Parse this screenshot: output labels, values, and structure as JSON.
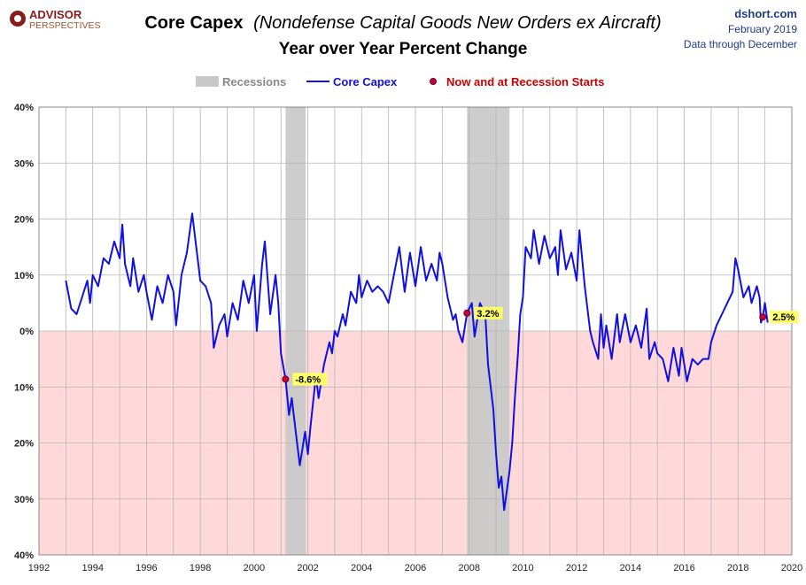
{
  "header": {
    "logo_top": "ADVISOR",
    "logo_bottom": "PERSPECTIVES",
    "title_main": "Core Capex",
    "title_paren": "(Nondefense  Capital Goods New Orders ex Aircraft)",
    "subtitle": "Year over Year Percent Change",
    "site": "dshort.com",
    "date": "February 2019",
    "data_through": "Data through December"
  },
  "legend": {
    "recessions": "Recessions",
    "series": "Core Capex",
    "markers": "Now and at Recession Starts"
  },
  "colors": {
    "line": "#1010e0",
    "recession": "#c8c8c8",
    "negative_fill": "#ffd9d9",
    "marker": "#cc0033",
    "label_bg": "#ffff66",
    "title": "#000000",
    "blue_text": "#1f3a8a",
    "red_text": "#cc0000",
    "logo": "#8b1a1a"
  },
  "chart_data": {
    "type": "line",
    "title": "Core Capex (Nondefense  Capital Goods New Orders ex Aircraft)",
    "subtitle": "Year over Year Percent Change",
    "xlim": [
      1992,
      2020
    ],
    "ylim": [
      -40,
      40
    ],
    "x_ticks": [
      1992,
      1994,
      1996,
      1998,
      2000,
      2002,
      2004,
      2006,
      2008,
      2010,
      2012,
      2014,
      2016,
      2018,
      2020
    ],
    "y_ticks": [
      -40,
      -30,
      -20,
      -10,
      0,
      10,
      20,
      30,
      40
    ],
    "y_tick_labels": [
      "40%",
      "30%",
      "20%",
      "10%",
      "0%",
      "10%",
      "20%",
      "30%",
      "40%"
    ],
    "grid": true,
    "legend_position": "top-center",
    "recessions": [
      [
        2001.17,
        2001.92
      ],
      [
        2007.92,
        2009.5
      ]
    ],
    "annotations": [
      {
        "x": 2001.17,
        "y": -8.6,
        "label": "-8.6%"
      },
      {
        "x": 2007.92,
        "y": 3.2,
        "label": "3.2%"
      },
      {
        "x": 2018.92,
        "y": 2.5,
        "label": "2.5%"
      }
    ],
    "series": [
      {
        "name": "Core Capex",
        "points": [
          [
            1993.0,
            9
          ],
          [
            1993.2,
            4
          ],
          [
            1993.4,
            3
          ],
          [
            1993.6,
            6
          ],
          [
            1993.8,
            9
          ],
          [
            1993.9,
            5
          ],
          [
            1994.0,
            10
          ],
          [
            1994.2,
            8
          ],
          [
            1994.4,
            13
          ],
          [
            1994.6,
            12
          ],
          [
            1994.8,
            16
          ],
          [
            1995.0,
            13
          ],
          [
            1995.1,
            19
          ],
          [
            1995.2,
            12
          ],
          [
            1995.4,
            8
          ],
          [
            1995.5,
            13
          ],
          [
            1995.7,
            7
          ],
          [
            1995.9,
            10
          ],
          [
            1996.0,
            7
          ],
          [
            1996.2,
            2
          ],
          [
            1996.4,
            8
          ],
          [
            1996.6,
            5
          ],
          [
            1996.8,
            10
          ],
          [
            1997.0,
            7
          ],
          [
            1997.1,
            1
          ],
          [
            1997.3,
            10
          ],
          [
            1997.5,
            14
          ],
          [
            1997.7,
            21
          ],
          [
            1997.9,
            13
          ],
          [
            1998.0,
            9
          ],
          [
            1998.2,
            8
          ],
          [
            1998.4,
            5
          ],
          [
            1998.5,
            -3
          ],
          [
            1998.7,
            1
          ],
          [
            1998.9,
            3
          ],
          [
            1999.0,
            -1
          ],
          [
            1999.2,
            5
          ],
          [
            1999.4,
            2
          ],
          [
            1999.6,
            9
          ],
          [
            1999.8,
            5
          ],
          [
            2000.0,
            10
          ],
          [
            2000.1,
            0
          ],
          [
            2000.3,
            12
          ],
          [
            2000.4,
            16
          ],
          [
            2000.6,
            3
          ],
          [
            2000.8,
            10
          ],
          [
            2000.9,
            5
          ],
          [
            2001.0,
            -4
          ],
          [
            2001.17,
            -8.6
          ],
          [
            2001.3,
            -15
          ],
          [
            2001.4,
            -12
          ],
          [
            2001.6,
            -20
          ],
          [
            2001.7,
            -24
          ],
          [
            2001.9,
            -18
          ],
          [
            2002.0,
            -22
          ],
          [
            2002.1,
            -17
          ],
          [
            2002.3,
            -8
          ],
          [
            2002.4,
            -12
          ],
          [
            2002.6,
            -6
          ],
          [
            2002.8,
            -2
          ],
          [
            2002.9,
            -4
          ],
          [
            2003.0,
            0
          ],
          [
            2003.1,
            -1
          ],
          [
            2003.3,
            3
          ],
          [
            2003.4,
            1
          ],
          [
            2003.6,
            7
          ],
          [
            2003.8,
            5
          ],
          [
            2003.9,
            10
          ],
          [
            2004.0,
            6
          ],
          [
            2004.2,
            9
          ],
          [
            2004.4,
            7
          ],
          [
            2004.6,
            8
          ],
          [
            2004.8,
            7
          ],
          [
            2005.0,
            5
          ],
          [
            2005.2,
            10
          ],
          [
            2005.4,
            15
          ],
          [
            2005.6,
            7
          ],
          [
            2005.8,
            14
          ],
          [
            2006.0,
            8
          ],
          [
            2006.2,
            15
          ],
          [
            2006.4,
            9
          ],
          [
            2006.6,
            12
          ],
          [
            2006.8,
            9
          ],
          [
            2006.9,
            14
          ],
          [
            2007.0,
            12
          ],
          [
            2007.2,
            6
          ],
          [
            2007.4,
            2
          ],
          [
            2007.5,
            3
          ],
          [
            2007.6,
            0
          ],
          [
            2007.75,
            -2
          ],
          [
            2007.92,
            3.2
          ],
          [
            2008.1,
            5
          ],
          [
            2008.2,
            -1
          ],
          [
            2008.4,
            5
          ],
          [
            2008.6,
            3
          ],
          [
            2008.7,
            -6
          ],
          [
            2008.8,
            -10
          ],
          [
            2008.9,
            -14
          ],
          [
            2009.0,
            -22
          ],
          [
            2009.1,
            -28
          ],
          [
            2009.2,
            -26
          ],
          [
            2009.3,
            -32
          ],
          [
            2009.5,
            -25
          ],
          [
            2009.6,
            -20
          ],
          [
            2009.7,
            -12
          ],
          [
            2009.8,
            -5
          ],
          [
            2009.9,
            3
          ],
          [
            2010.0,
            6
          ],
          [
            2010.1,
            15
          ],
          [
            2010.3,
            13
          ],
          [
            2010.4,
            18
          ],
          [
            2010.6,
            12
          ],
          [
            2010.8,
            17
          ],
          [
            2011.0,
            13
          ],
          [
            2011.2,
            15
          ],
          [
            2011.3,
            10
          ],
          [
            2011.4,
            18
          ],
          [
            2011.6,
            11
          ],
          [
            2011.8,
            14
          ],
          [
            2012.0,
            9
          ],
          [
            2012.1,
            18
          ],
          [
            2012.3,
            8
          ],
          [
            2012.5,
            0
          ],
          [
            2012.6,
            -2
          ],
          [
            2012.8,
            -5
          ],
          [
            2012.9,
            3
          ],
          [
            2013.0,
            -3
          ],
          [
            2013.1,
            1
          ],
          [
            2013.3,
            -5
          ],
          [
            2013.5,
            3
          ],
          [
            2013.6,
            -2
          ],
          [
            2013.8,
            3
          ],
          [
            2014.0,
            -2
          ],
          [
            2014.2,
            1
          ],
          [
            2014.4,
            -3
          ],
          [
            2014.6,
            4
          ],
          [
            2014.7,
            -5
          ],
          [
            2014.9,
            -2
          ],
          [
            2015.0,
            -4
          ],
          [
            2015.2,
            -5
          ],
          [
            2015.4,
            -9
          ],
          [
            2015.6,
            -3
          ],
          [
            2015.8,
            -8
          ],
          [
            2015.9,
            -3
          ],
          [
            2016.0,
            -6
          ],
          [
            2016.1,
            -9
          ],
          [
            2016.3,
            -5
          ],
          [
            2016.5,
            -6
          ],
          [
            2016.7,
            -5
          ],
          [
            2016.9,
            -5
          ],
          [
            2017.0,
            -2
          ],
          [
            2017.2,
            1
          ],
          [
            2017.4,
            3
          ],
          [
            2017.6,
            5
          ],
          [
            2017.8,
            7
          ],
          [
            2017.9,
            13
          ],
          [
            2018.0,
            11
          ],
          [
            2018.2,
            6
          ],
          [
            2018.4,
            8
          ],
          [
            2018.5,
            5
          ],
          [
            2018.7,
            8
          ],
          [
            2018.8,
            6
          ],
          [
            2018.85,
            1.5
          ],
          [
            2018.92,
            2.5
          ],
          [
            2019.0,
            5
          ],
          [
            2019.1,
            1.5
          ]
        ]
      }
    ]
  }
}
